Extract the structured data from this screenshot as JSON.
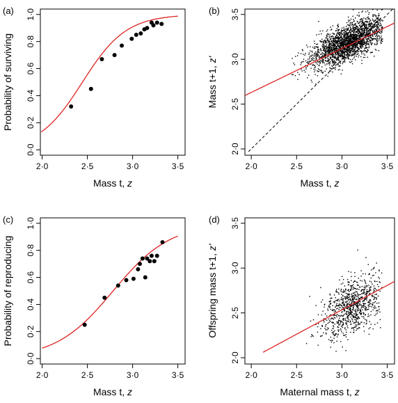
{
  "chart_data": [
    {
      "panel_label": "(a)",
      "type": "scatter",
      "xlabel_main": "Mass t, ",
      "xlabel_var": "z",
      "ylabel_main": "Probability of surviving",
      "ylabel_var": "",
      "xlim": [
        1.98,
        3.58
      ],
      "ylim": [
        -0.04,
        1.04
      ],
      "xticks": [
        2.0,
        2.5,
        3.0,
        3.5
      ],
      "xtick_labels": [
        "2·0",
        "2·5",
        "3·0",
        "3·5"
      ],
      "yticks": [
        0.0,
        0.2,
        0.4,
        0.6,
        0.8,
        1.0
      ],
      "ytick_labels": [
        "0·0",
        "0·2",
        "0·4",
        "0·6",
        "0·8",
        "1·0"
      ],
      "points": [
        [
          2.32,
          0.32
        ],
        [
          2.54,
          0.45
        ],
        [
          2.66,
          0.67
        ],
        [
          2.8,
          0.7
        ],
        [
          2.88,
          0.77
        ],
        [
          2.99,
          0.82
        ],
        [
          3.04,
          0.85
        ],
        [
          3.09,
          0.86
        ],
        [
          3.13,
          0.89
        ],
        [
          3.16,
          0.9
        ],
        [
          3.21,
          0.94
        ],
        [
          3.23,
          0.92
        ],
        [
          3.27,
          0.94
        ],
        [
          3.32,
          0.93
        ]
      ],
      "fit": {
        "kind": "logistic",
        "a": -10.1,
        "b": 4.13,
        "x_from": 1.99,
        "x_to": 3.5
      },
      "colors": {
        "points": "#000000",
        "fit": "#dd2222"
      }
    },
    {
      "panel_label": "(b)",
      "type": "scatter",
      "xlabel_main": "Mass t, ",
      "xlabel_var": "z",
      "ylabel_main": "Mass t+1, ",
      "ylabel_var": "z'",
      "xlim": [
        1.93,
        3.58
      ],
      "ylim": [
        1.93,
        3.56
      ],
      "xticks": [
        2.0,
        2.5,
        3.0,
        3.5
      ],
      "xtick_labels": [
        "2·0",
        "2·5",
        "3·0",
        "3·5"
      ],
      "yticks": [
        2.0,
        2.5,
        3.0,
        3.5
      ],
      "ytick_labels": [
        "2·0",
        "2·5",
        "3·0",
        "3·5"
      ],
      "cloud": {
        "x_mean": 3.08,
        "x_sd": 0.21,
        "x_min": 2.05,
        "x_max": 3.45,
        "y_intercept": 1.84,
        "y_slope": 0.44,
        "resid_sd": 0.1,
        "n": 2300,
        "seed": 11
      },
      "fit": {
        "kind": "linear",
        "intercept": 1.65,
        "slope": 0.49,
        "x_from": 1.93,
        "x_to": 3.58
      },
      "reference": {
        "kind": "identity",
        "x_from": 1.97,
        "x_to": 3.58
      },
      "colors": {
        "points": "#000000",
        "fit": "#dd2222",
        "reference": "#000000"
      }
    },
    {
      "panel_label": "(c)",
      "type": "scatter",
      "xlabel_main": "Mass t, ",
      "xlabel_var": "z",
      "ylabel_main": "Probability of reproducing",
      "ylabel_var": "",
      "xlim": [
        1.98,
        3.58
      ],
      "ylim": [
        -0.04,
        1.04
      ],
      "xticks": [
        2.0,
        2.5,
        3.0,
        3.5
      ],
      "xtick_labels": [
        "2·0",
        "2·5",
        "3·0",
        "3·5"
      ],
      "yticks": [
        0.0,
        0.2,
        0.4,
        0.6,
        0.8,
        1.0
      ],
      "ytick_labels": [
        "0·0",
        "0·2",
        "0·4",
        "0·6",
        "0·8",
        "1·0"
      ],
      "points": [
        [
          2.47,
          0.25
        ],
        [
          2.69,
          0.45
        ],
        [
          2.84,
          0.54
        ],
        [
          2.93,
          0.58
        ],
        [
          3.01,
          0.59
        ],
        [
          3.06,
          0.66
        ],
        [
          3.08,
          0.7
        ],
        [
          3.11,
          0.74
        ],
        [
          3.14,
          0.6
        ],
        [
          3.16,
          0.74
        ],
        [
          3.19,
          0.72
        ],
        [
          3.21,
          0.76
        ],
        [
          3.24,
          0.72
        ],
        [
          3.27,
          0.76
        ],
        [
          3.33,
          0.86
        ]
      ],
      "fit": {
        "kind": "logistic",
        "a": -8.8,
        "b": 3.16,
        "x_from": 2.0,
        "x_to": 3.5
      },
      "colors": {
        "points": "#000000",
        "fit": "#dd2222"
      }
    },
    {
      "panel_label": "(d)",
      "type": "scatter",
      "xlabel_main": "Maternal mass t, ",
      "xlabel_var": "z",
      "ylabel_main": "Offspring mass t+1, ",
      "ylabel_var": "z'",
      "xlim": [
        1.93,
        3.58
      ],
      "ylim": [
        1.93,
        3.56
      ],
      "xticks": [
        2.0,
        2.5,
        3.0,
        3.5
      ],
      "xtick_labels": [
        "2·0",
        "2·5",
        "3·0",
        "3·5"
      ],
      "yticks": [
        2.0,
        2.5,
        3.0,
        3.5
      ],
      "ytick_labels": [
        "2·0",
        "2·5",
        "3·0",
        "3·5"
      ],
      "cloud": {
        "x_mean": 3.12,
        "x_sd": 0.17,
        "x_min": 2.33,
        "x_max": 3.45,
        "y_intercept": 1.1,
        "y_slope": 0.47,
        "resid_sd": 0.15,
        "n": 900,
        "seed": 29
      },
      "fit": {
        "kind": "linear",
        "intercept": 0.9,
        "slope": 0.545,
        "x_from": 2.13,
        "x_to": 3.58
      },
      "colors": {
        "points": "#000000",
        "fit": "#dd2222"
      }
    }
  ]
}
